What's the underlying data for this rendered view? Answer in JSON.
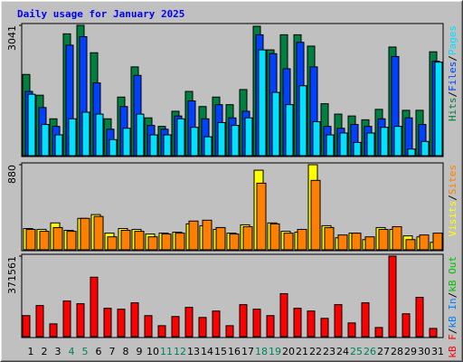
{
  "chart_data": [
    {
      "type": "bar",
      "title": "Daily usage for January 2025",
      "title_color": "#0000ff",
      "ylim": [
        0,
        3041
      ],
      "yticks": [
        3041
      ],
      "separator": "/",
      "series": [
        {
          "name": "Hits",
          "color": "#008040",
          "values": [
            1895,
            1411,
            860,
            2843,
            3041,
            2402,
            860,
            1367,
            2072,
            882,
            683,
            1036,
            1499,
            1146,
            1367,
            1190,
            1543,
            3020,
            2469,
            2821,
            2821,
            2557,
            1212,
            970,
            926,
            837,
            1080,
            2535,
            1058,
            1058,
            2424
          ]
        },
        {
          "name": "Files",
          "color": "#0040ff",
          "values": [
            1499,
            1124,
            683,
            2579,
            2777,
            1697,
            617,
            1146,
            1873,
            705,
            617,
            926,
            1278,
            860,
            1190,
            882,
            1036,
            2821,
            2380,
            2028,
            2645,
            2072,
            683,
            639,
            727,
            683,
            860,
            2314,
            882,
            727,
            2204
          ]
        },
        {
          "name": "Pages",
          "color": "#00e0ff",
          "values": [
            1433,
            727,
            485,
            860,
            1014,
            970,
            375,
            639,
            970,
            485,
            485,
            860,
            661,
            441,
            771,
            705,
            882,
            2469,
            1477,
            1190,
            1631,
            793,
            485,
            529,
            309,
            529,
            661,
            683,
            154,
            331,
            2182
          ]
        }
      ]
    },
    {
      "type": "bar",
      "ylim": [
        0,
        880
      ],
      "yticks": [
        880
      ],
      "separator": "/",
      "series": [
        {
          "name": "Visits",
          "color": "#ffff00",
          "values": [
            220,
            211,
            278,
            201,
            325,
            364,
            172,
            220,
            211,
            163,
            172,
            182,
            268,
            249,
            211,
            172,
            258,
            823,
            278,
            191,
            182,
            880,
            249,
            124,
            172,
            105,
            230,
            211,
            144,
            134,
            77
          ]
        },
        {
          "name": "Sites",
          "color": "#ff8000",
          "values": [
            211,
            191,
            230,
            191,
            325,
            345,
            134,
            201,
            191,
            134,
            163,
            172,
            297,
            306,
            230,
            163,
            239,
            689,
            268,
            172,
            211,
            718,
            230,
            153,
            172,
            134,
            211,
            239,
            105,
            153,
            172
          ]
        }
      ]
    },
    {
      "type": "bar",
      "ylim": [
        0,
        371561
      ],
      "yticks": [
        371561
      ],
      "separator": "/",
      "categories": [
        "1",
        "2",
        "3",
        "4",
        "5",
        "6",
        "7",
        "8",
        "9",
        "10",
        "11",
        "12",
        "13",
        "14",
        "15",
        "16",
        "17",
        "18",
        "19",
        "20",
        "21",
        "22",
        "23",
        "24",
        "25",
        "26",
        "27",
        "28",
        "29",
        "30",
        "31"
      ],
      "category_colors": [
        "#000000",
        "#000000",
        "#000000",
        "#00805c",
        "#00805c",
        "#000000",
        "#000000",
        "#000000",
        "#000000",
        "#000000",
        "#00805c",
        "#00805c",
        "#000000",
        "#000000",
        "#000000",
        "#000000",
        "#000000",
        "#00805c",
        "#00805c",
        "#000000",
        "#000000",
        "#000000",
        "#000000",
        "#000000",
        "#00805c",
        "#00805c",
        "#000000",
        "#000000",
        "#000000",
        "#000000",
        "#000000"
      ],
      "series": [
        {
          "name": "kB F",
          "color": "#ff0000",
          "values": [
            97106,
            143548,
            59108,
            164658,
            151992,
            274430,
            130882,
            126660,
            156214,
            97106,
            50664,
            92884,
            135104,
            88662,
            118216,
            50664,
            147770,
            126660,
            97106,
            198434,
            130882,
            118216,
            84440,
            147770,
            63330,
            156214,
            42220,
            371561,
            105550,
            181546,
            37998
          ]
        }
      ],
      "legend_only": [
        {
          "name": "kB In",
          "color": "#0080ff"
        },
        {
          "name": "kB Out",
          "color": "#00c000"
        }
      ]
    }
  ]
}
